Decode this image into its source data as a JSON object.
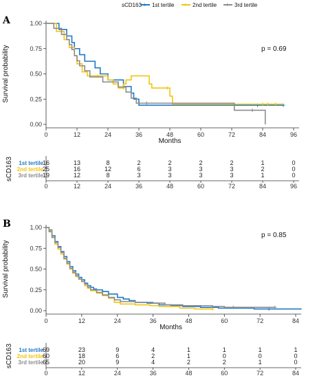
{
  "legend": {
    "title": "sCD163",
    "entries": [
      "1st tertile",
      "2nd tertile",
      "3rd tertile"
    ]
  },
  "colors": {
    "1st tertile": "#1f78c8",
    "2nd tertile": "#f2c40f",
    "3rd tertile": "#8c8c8c"
  },
  "chart_data": [
    {
      "type": "line",
      "panel": "A",
      "ylabel": "Survival probability",
      "xlabel": "Months",
      "pvalue": "p = 0.69",
      "xlim": [
        0,
        96
      ],
      "xticks": [
        0,
        12,
        24,
        36,
        48,
        60,
        72,
        84,
        96
      ],
      "ylim": [
        0,
        1
      ],
      "yticks": [
        "0.00",
        "0.25",
        "0.50",
        "0.75",
        "1.00"
      ],
      "series": [
        {
          "name": "1st tertile",
          "steps": [
            [
              0,
              1.0
            ],
            [
              5,
              0.94
            ],
            [
              8,
              0.875
            ],
            [
              10,
              0.81
            ],
            [
              11,
              0.75
            ],
            [
              13,
              0.69
            ],
            [
              15,
              0.625
            ],
            [
              19,
              0.56
            ],
            [
              21,
              0.5
            ],
            [
              24,
              0.44
            ],
            [
              30,
              0.375
            ],
            [
              33,
              0.31
            ],
            [
              34,
              0.25
            ],
            [
              36,
              0.19
            ],
            [
              92,
              0.19
            ]
          ],
          "censor": [
            [
              82,
              0.19
            ],
            [
              92,
              0.19
            ]
          ]
        },
        {
          "name": "2nd tertile",
          "steps": [
            [
              0,
              1.0
            ],
            [
              4,
              0.92
            ],
            [
              7,
              0.84
            ],
            [
              9,
              0.76
            ],
            [
              11,
              0.68
            ],
            [
              12,
              0.6
            ],
            [
              14,
              0.52
            ],
            [
              16,
              0.48
            ],
            [
              22,
              0.48
            ],
            [
              24,
              0.44
            ],
            [
              26,
              0.4
            ],
            [
              28,
              0.36
            ],
            [
              30,
              0.4
            ],
            [
              31,
              0.44
            ],
            [
              33,
              0.48
            ],
            [
              34,
              0.48
            ],
            [
              40,
              0.4
            ],
            [
              41,
              0.36
            ],
            [
              46,
              0.36
            ],
            [
              48,
              0.28
            ],
            [
              49,
              0.2
            ],
            [
              92,
              0.2
            ]
          ],
          "censor": [
            [
              20,
              0.48
            ],
            [
              30,
              0.36
            ],
            [
              47,
              0.36
            ],
            [
              84,
              0.2
            ],
            [
              86,
              0.2
            ],
            [
              89,
              0.2
            ]
          ]
        },
        {
          "name": "3rd tertile",
          "steps": [
            [
              0,
              1.0
            ],
            [
              3,
              0.95
            ],
            [
              6,
              0.89
            ],
            [
              8,
              0.84
            ],
            [
              9,
              0.79
            ],
            [
              10,
              0.74
            ],
            [
              11,
              0.68
            ],
            [
              12,
              0.63
            ],
            [
              13,
              0.58
            ],
            [
              15,
              0.53
            ],
            [
              17,
              0.47
            ],
            [
              22,
              0.42
            ],
            [
              28,
              0.37
            ],
            [
              31,
              0.32
            ],
            [
              33,
              0.26
            ],
            [
              35,
              0.21
            ],
            [
              72,
              0.21
            ],
            [
              73,
              0.14
            ],
            [
              84,
              0.14
            ],
            [
              85,
              0.0
            ]
          ],
          "censor": [
            [
              39,
              0.21
            ],
            [
              80,
              0.14
            ]
          ]
        }
      ],
      "risk_table": {
        "title": "sCD163",
        "time": [
          0,
          12,
          24,
          36,
          48,
          60,
          72,
          84,
          96
        ],
        "rows": [
          {
            "name": "1st tertile",
            "values": [
              "16",
              "13",
              "8",
              "2",
              "2",
              "2",
              "2",
              "1",
              "0"
            ]
          },
          {
            "name": "2nd tertile",
            "values": [
              "25",
              "16",
              "12",
              "6",
              "3",
              "3",
              "3",
              "2",
              "0"
            ]
          },
          {
            "name": "3rd tertile",
            "values": [
              "19",
              "12",
              "8",
              "3",
              "3",
              "3",
              "3",
              "1",
              "0"
            ]
          }
        ]
      }
    },
    {
      "type": "line",
      "panel": "B",
      "ylabel": "Survival probability",
      "xlabel": "Months",
      "pvalue": "p = 0.85",
      "xlim": [
        0,
        84
      ],
      "xticks": [
        0,
        12,
        24,
        36,
        48,
        60,
        72,
        84
      ],
      "ylim": [
        0,
        1
      ],
      "yticks": [
        "0.00",
        "0.25",
        "0.50",
        "0.75",
        "1.00"
      ],
      "series": [
        {
          "name": "1st tertile",
          "steps": [
            [
              0,
              1.0
            ],
            [
              1,
              0.97
            ],
            [
              2,
              0.9
            ],
            [
              3,
              0.83
            ],
            [
              4,
              0.77
            ],
            [
              5,
              0.71
            ],
            [
              6,
              0.65
            ],
            [
              7,
              0.59
            ],
            [
              8,
              0.53
            ],
            [
              9,
              0.48
            ],
            [
              10,
              0.44
            ],
            [
              11,
              0.4
            ],
            [
              12,
              0.37
            ],
            [
              13,
              0.33
            ],
            [
              14,
              0.3
            ],
            [
              15,
              0.28
            ],
            [
              16,
              0.26
            ],
            [
              17,
              0.25
            ],
            [
              19,
              0.23
            ],
            [
              21,
              0.2
            ],
            [
              24,
              0.16
            ],
            [
              26,
              0.14
            ],
            [
              28,
              0.12
            ],
            [
              30,
              0.1
            ],
            [
              34,
              0.09
            ],
            [
              38,
              0.07
            ],
            [
              42,
              0.06
            ],
            [
              46,
              0.05
            ],
            [
              52,
              0.04
            ],
            [
              58,
              0.03
            ],
            [
              64,
              0.03
            ],
            [
              70,
              0.02
            ],
            [
              86,
              0.02
            ]
          ],
          "censor": [
            [
              75,
              0.02
            ]
          ]
        },
        {
          "name": "2nd tertile",
          "steps": [
            [
              0,
              1.0
            ],
            [
              1,
              0.96
            ],
            [
              2,
              0.88
            ],
            [
              3,
              0.8
            ],
            [
              4,
              0.74
            ],
            [
              5,
              0.68
            ],
            [
              6,
              0.62
            ],
            [
              7,
              0.56
            ],
            [
              8,
              0.5
            ],
            [
              9,
              0.45
            ],
            [
              10,
              0.41
            ],
            [
              11,
              0.38
            ],
            [
              12,
              0.35
            ],
            [
              13,
              0.3
            ],
            [
              14,
              0.27
            ],
            [
              15,
              0.24
            ],
            [
              17,
              0.21
            ],
            [
              19,
              0.18
            ],
            [
              21,
              0.15
            ],
            [
              23,
              0.1
            ],
            [
              25,
              0.08
            ],
            [
              30,
              0.07
            ],
            [
              35,
              0.06
            ],
            [
              38,
              0.05
            ],
            [
              45,
              0.03
            ],
            [
              50,
              0.02
            ],
            [
              56,
              0.02
            ]
          ],
          "censor": [
            [
              56,
              0.02
            ]
          ]
        },
        {
          "name": "3rd tertile",
          "steps": [
            [
              0,
              1.0
            ],
            [
              1,
              0.95
            ],
            [
              2,
              0.88
            ],
            [
              3,
              0.82
            ],
            [
              4,
              0.76
            ],
            [
              5,
              0.7
            ],
            [
              6,
              0.63
            ],
            [
              7,
              0.57
            ],
            [
              8,
              0.51
            ],
            [
              9,
              0.46
            ],
            [
              10,
              0.42
            ],
            [
              11,
              0.38
            ],
            [
              12,
              0.35
            ],
            [
              13,
              0.32
            ],
            [
              14,
              0.28
            ],
            [
              15,
              0.25
            ],
            [
              17,
              0.22
            ],
            [
              19,
              0.19
            ],
            [
              21,
              0.16
            ],
            [
              23,
              0.13
            ],
            [
              25,
              0.11
            ],
            [
              30,
              0.1
            ],
            [
              36,
              0.09
            ],
            [
              40,
              0.07
            ],
            [
              46,
              0.06
            ],
            [
              56,
              0.05
            ],
            [
              60,
              0.04
            ],
            [
              63,
              0.04
            ],
            [
              77,
              0.04
            ]
          ],
          "censor": [
            [
              63,
              0.04
            ],
            [
              77,
              0.04
            ]
          ]
        }
      ],
      "risk_table": {
        "title": "sCD163",
        "time": [
          0,
          12,
          24,
          36,
          48,
          60,
          72,
          84
        ],
        "rows": [
          {
            "name": "1st tertile",
            "values": [
              "69",
              "23",
              "9",
              "4",
              "1",
              "1",
              "1",
              "1"
            ]
          },
          {
            "name": "2nd tertile",
            "values": [
              "60",
              "18",
              "6",
              "2",
              "1",
              "0",
              "0",
              "0"
            ]
          },
          {
            "name": "3rd tertile",
            "values": [
              "65",
              "20",
              "9",
              "4",
              "2",
              "2",
              "1",
              "0"
            ]
          }
        ]
      }
    }
  ]
}
